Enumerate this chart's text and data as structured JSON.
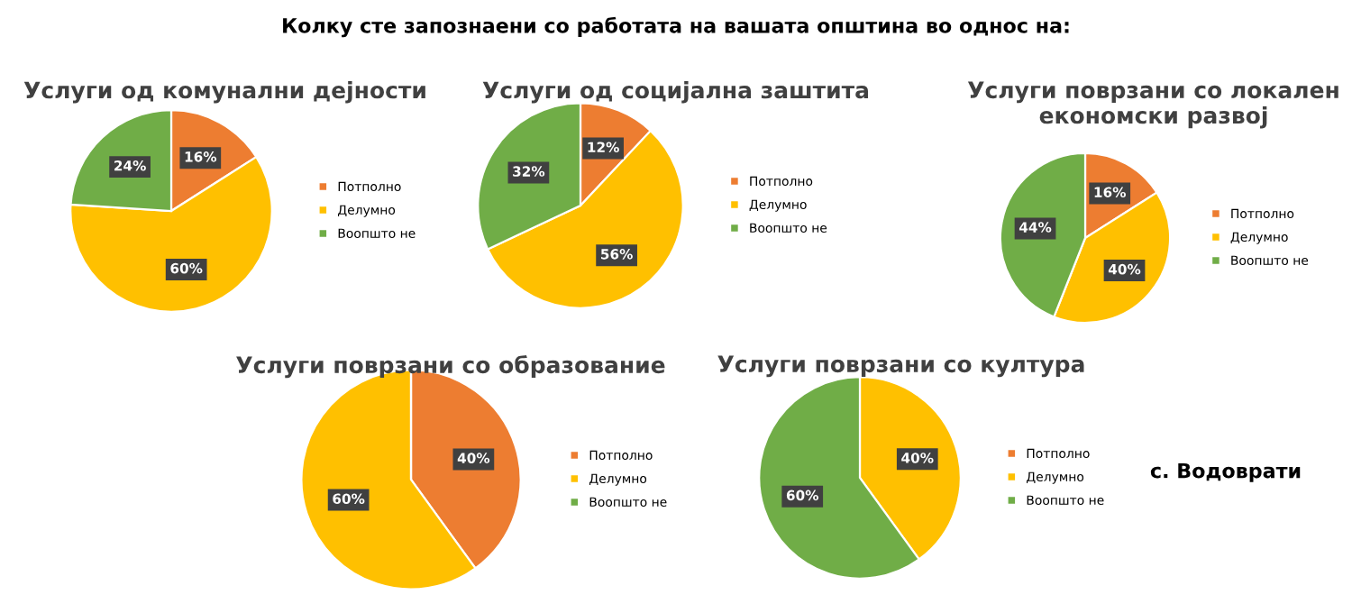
{
  "chart_data": [
    {
      "type": "pie",
      "title": "Услуги од комунални дејности",
      "categories": [
        "Потполно",
        "Делумно",
        "Воопшто не"
      ],
      "values": [
        16,
        60,
        24
      ],
      "colors": [
        "#ed7d31",
        "#ffc000",
        "#70ad47"
      ],
      "value_labels": [
        "16%",
        "60%",
        "24%"
      ],
      "legend": "right",
      "annotations": [
        "Колку сте запознаени со работата на вашата општина во однос на:"
      ]
    },
    {
      "type": "pie",
      "title": "Услуги од социјална заштита",
      "categories": [
        "Потполно",
        "Делумно",
        "Воопшто не"
      ],
      "values": [
        12,
        56,
        32
      ],
      "colors": [
        "#ed7d31",
        "#ffc000",
        "#70ad47"
      ],
      "value_labels": [
        "12%",
        "56%",
        "32%"
      ],
      "legend": "right"
    },
    {
      "type": "pie",
      "title": "Услуги поврзани со локален економски развој",
      "categories": [
        "Потполно",
        "Делумно",
        "Воопшто не"
      ],
      "values": [
        16,
        40,
        44
      ],
      "colors": [
        "#ed7d31",
        "#ffc000",
        "#70ad47"
      ],
      "value_labels": [
        "16%",
        "40%",
        "44%"
      ],
      "legend": "right"
    },
    {
      "type": "pie",
      "title": "Услуги поврзани со образование",
      "categories": [
        "Потполно",
        "Делумно",
        "Воопшто не"
      ],
      "values": [
        40,
        60,
        0
      ],
      "colors": [
        "#ed7d31",
        "#ffc000",
        "#70ad47"
      ],
      "value_labels": [
        "40%",
        "60%",
        null
      ],
      "legend": "right"
    },
    {
      "type": "pie",
      "title": "Услуги поврзани со култура",
      "categories": [
        "Потполно",
        "Делумно",
        "Воопшто не"
      ],
      "values": [
        0,
        40,
        60
      ],
      "colors": [
        "#ed7d31",
        "#ffc000",
        "#70ad47"
      ],
      "value_labels": [
        null,
        "40%",
        "60%"
      ],
      "legend": "right",
      "annotations": [
        "с. Водоврати"
      ]
    }
  ]
}
